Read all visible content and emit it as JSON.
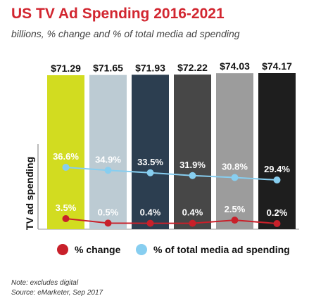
{
  "title": "US TV Ad Spending 2016-2021",
  "subtitle": "billions, % change and % of total media ad spending",
  "notes": {
    "note": "Note: excludes digital",
    "source": "Source: eMarketer, Sep 2017"
  },
  "colors": {
    "title": "#d22630",
    "change_series": "#c8202a",
    "share_series": "#87cef0",
    "bars": [
      "#d2dc20",
      "#bccbd3",
      "#2c3e50",
      "#474747",
      "#9c9c9c",
      "#1e1e1e"
    ]
  },
  "chart_data": {
    "type": "bar",
    "ylabel": "TV ad spending",
    "bar_labels": [
      "$71.29",
      "$71.65",
      "$71.93",
      "$72.22",
      "$74.03",
      "$74.17"
    ],
    "values": [
      71.29,
      71.65,
      71.93,
      72.22,
      74.03,
      74.17
    ],
    "series": [
      {
        "name": "% of total media ad spending",
        "values": [
          36.6,
          34.9,
          33.5,
          31.9,
          30.8,
          29.4
        ],
        "labels": [
          "36.6%",
          "34.9%",
          "33.5%",
          "31.9%",
          "30.8%",
          "29.4%"
        ]
      },
      {
        "name": "% change",
        "values": [
          3.5,
          0.5,
          0.4,
          0.4,
          2.5,
          0.2
        ],
        "labels": [
          "3.5%",
          "0.5%",
          "0.4%",
          "0.4%",
          "2.5%",
          "0.2%"
        ]
      }
    ],
    "legend": [
      "% change",
      "% of total media ad spending"
    ],
    "legend_placement": "bottom"
  }
}
